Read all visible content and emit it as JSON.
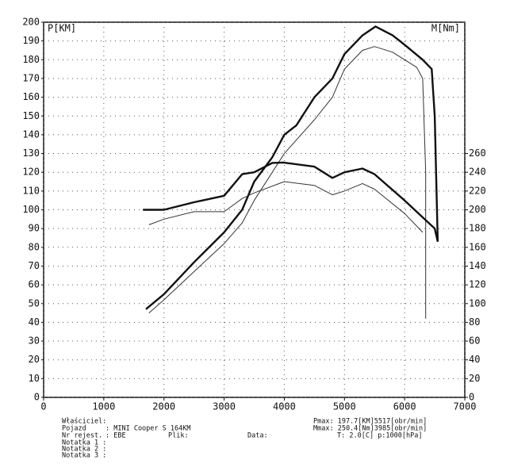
{
  "chart_data": {
    "type": "line",
    "y_label": "P[KM]",
    "y2_label": "M[Nm]",
    "xlim": [
      0,
      7000
    ],
    "xticks": [
      0,
      1000,
      2000,
      3000,
      4000,
      5000,
      6000,
      7000
    ],
    "ylim": [
      0,
      200
    ],
    "yticks": [
      0,
      10,
      20,
      30,
      40,
      50,
      60,
      70,
      80,
      90,
      100,
      110,
      120,
      130,
      140,
      150,
      160,
      170,
      180,
      190,
      200
    ],
    "y2lim": [
      0,
      400
    ],
    "y2ticks": [
      0,
      20,
      40,
      60,
      80,
      100,
      120,
      140,
      160,
      180,
      200,
      220,
      240,
      260
    ],
    "grid": true,
    "series": [
      {
        "color": "#111",
        "width": 2.4,
        "x": [
          1700,
          2000,
          2500,
          3000,
          3300,
          3500,
          3800,
          4000,
          4200,
          4500,
          4800,
          5000,
          5300,
          5517,
          5800,
          6000,
          6300,
          6450,
          6500,
          6550
        ],
        "values": [
          47,
          55,
          72,
          88,
          100,
          115,
          128,
          140,
          145,
          160,
          170,
          183,
          193,
          197.7,
          193,
          188,
          180,
          175,
          150,
          83
        ]
      },
      {
        "color": "#333",
        "width": 1,
        "x": [
          1750,
          2000,
          2500,
          3000,
          3300,
          3500,
          4000,
          4500,
          4800,
          5000,
          5300,
          5500,
          5800,
          6000,
          6200,
          6300,
          6350,
          6350
        ],
        "values": [
          45,
          52,
          67,
          82,
          93,
          105,
          130,
          148,
          160,
          175,
          185,
          187,
          184,
          180,
          176,
          170,
          120,
          42
        ]
      },
      {
        "color": "#111",
        "width": 2.4,
        "axis": "y2",
        "x": [
          1650,
          2000,
          2500,
          3000,
          3300,
          3500,
          3800,
          3985,
          4500,
          4800,
          5000,
          5300,
          5500,
          6000,
          6300,
          6500,
          6550
        ],
        "values": [
          200,
          200,
          208,
          215,
          238,
          240,
          250,
          250.4,
          246,
          234,
          240,
          244,
          238,
          210,
          192,
          180,
          166
        ]
      },
      {
        "color": "#333",
        "width": 1,
        "axis": "y2",
        "x": [
          1750,
          2000,
          2500,
          3000,
          3300,
          3500,
          4000,
          4500,
          4800,
          5000,
          5300,
          5500,
          6000,
          6300
        ],
        "values": [
          184,
          190,
          198,
          198,
          212,
          218,
          230,
          226,
          216,
          220,
          228,
          222,
          196,
          176
        ]
      }
    ]
  },
  "footer": {
    "owner_label": "Właściciel:",
    "vehicle_label": "Pojazd",
    "vehicle": ": MINI Cooper S 164KM",
    "reg_label": "Nr rejest.",
    "reg": ": EBE",
    "file_label": "Plik:",
    "date_label": "Data:",
    "note1": "Notatka 1 :",
    "note2": "Notatka 2 :",
    "note3": "Notatka 3 :",
    "pmax": "Pmax:  197.7[KM]5517[obr/min]",
    "mmax": "Mmax:  250.4[Nm]3985[obr/min]",
    "cond": "T: 2.0[C]   p:1000[hPa]"
  }
}
